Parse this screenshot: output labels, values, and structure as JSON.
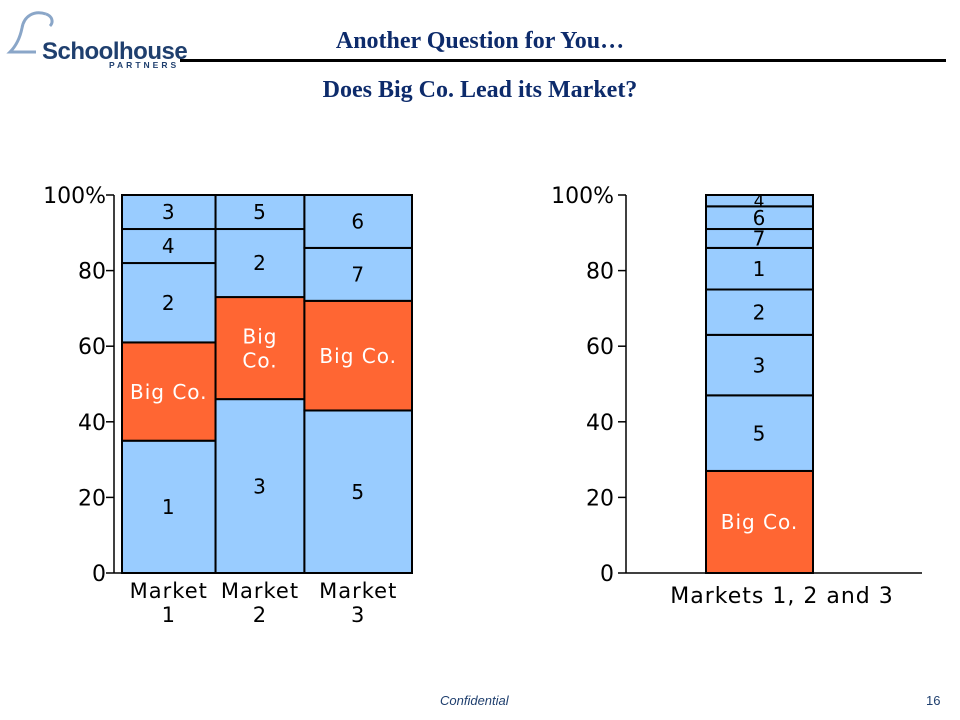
{
  "header": {
    "logo_name": "Schoolhouse",
    "logo_sub": "PARTNERS",
    "title": "Another Question for You…",
    "subtitle": "Does Big Co. Lead its Market?"
  },
  "footer": {
    "confidential": "Confidential",
    "page_number": "16"
  },
  "colors": {
    "segment": "#99ccff",
    "highlight": "#ff6633",
    "title": "#0d2b6b",
    "outline": "#000000"
  },
  "chart_data": [
    {
      "type": "bar",
      "stacked": true,
      "variable_width": true,
      "ylim": [
        0,
        100
      ],
      "yticks": [
        "0",
        "20",
        "40",
        "60",
        "80",
        "100%"
      ],
      "categories": [
        {
          "label": [
            "Market",
            "1"
          ],
          "width": 1.0,
          "segments": [
            {
              "label": "1",
              "value": 35,
              "highlight": false
            },
            {
              "label": "Big Co.",
              "value": 26,
              "highlight": true
            },
            {
              "label": "2",
              "value": 21,
              "highlight": false
            },
            {
              "label": "4",
              "value": 9,
              "highlight": false
            },
            {
              "label": "3",
              "value": 9,
              "highlight": false
            }
          ]
        },
        {
          "label": [
            "Market",
            "2"
          ],
          "width": 0.95,
          "segments": [
            {
              "label": "3",
              "value": 46,
              "highlight": false
            },
            {
              "label": "Big\nCo.",
              "value": 27,
              "highlight": true
            },
            {
              "label": "2",
              "value": 18,
              "highlight": false
            },
            {
              "label": "5",
              "value": 9,
              "highlight": false
            }
          ]
        },
        {
          "label": [
            "Market",
            "3"
          ],
          "width": 1.15,
          "segments": [
            {
              "label": "5",
              "value": 43,
              "highlight": false
            },
            {
              "label": "Big Co.",
              "value": 29,
              "highlight": true
            },
            {
              "label": "7",
              "value": 14,
              "highlight": false
            },
            {
              "label": "6",
              "value": 14,
              "highlight": false
            }
          ]
        }
      ]
    },
    {
      "type": "bar",
      "stacked": true,
      "ylim": [
        0,
        100
      ],
      "yticks": [
        "0",
        "20",
        "40",
        "60",
        "80",
        "100%"
      ],
      "categories": [
        {
          "label": [
            "Markets 1, 2 and 3"
          ],
          "segments": [
            {
              "label": "Big Co.",
              "value": 27,
              "highlight": true
            },
            {
              "label": "5",
              "value": 20,
              "highlight": false
            },
            {
              "label": "3",
              "value": 16,
              "highlight": false
            },
            {
              "label": "2",
              "value": 12,
              "highlight": false
            },
            {
              "label": "1",
              "value": 11,
              "highlight": false
            },
            {
              "label": "7",
              "value": 5,
              "highlight": false
            },
            {
              "label": "6",
              "value": 6,
              "highlight": false
            },
            {
              "label": "4",
              "value": 3,
              "highlight": false
            }
          ]
        }
      ]
    }
  ]
}
